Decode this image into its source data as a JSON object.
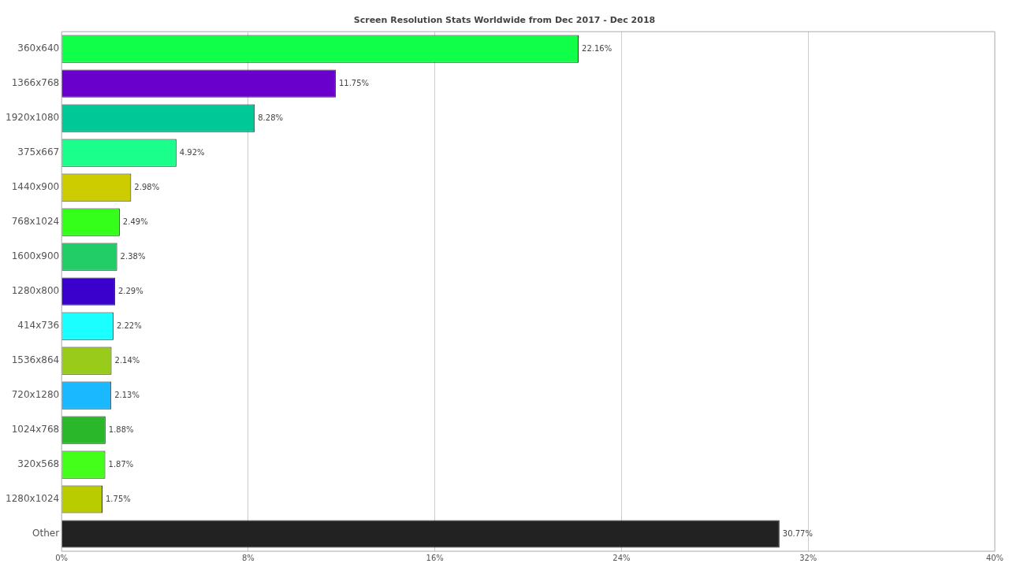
{
  "chart_data": {
    "type": "bar",
    "orientation": "horizontal",
    "subtitle": "Screen Resolution Stats Worldwide from Dec 2017 - Dec 2018",
    "categories": [
      "360x640",
      "1366x768",
      "1920x1080",
      "375x667",
      "1440x900",
      "768x1024",
      "1600x900",
      "1280x800",
      "414x736",
      "1536x864",
      "720x1280",
      "1024x768",
      "320x568",
      "1280x1024",
      "Other"
    ],
    "values": [
      22.16,
      11.75,
      8.28,
      4.92,
      2.98,
      2.49,
      2.38,
      2.29,
      2.22,
      2.14,
      2.13,
      1.88,
      1.87,
      1.75,
      30.77
    ],
    "value_labels": [
      "22.16%",
      "11.75%",
      "8.28%",
      "4.92%",
      "2.98%",
      "2.49%",
      "2.38%",
      "2.29%",
      "2.22%",
      "2.14%",
      "2.13%",
      "1.88%",
      "1.87%",
      "1.75%",
      "30.77%"
    ],
    "colors": [
      "#10ff48",
      "#6a00cc",
      "#00c896",
      "#1aff8c",
      "#cccc00",
      "#33ff1a",
      "#22cc66",
      "#3a00cc",
      "#1affff",
      "#99cc1a",
      "#1ab8ff",
      "#2ab82a",
      "#44ff1a",
      "#b8cc00",
      "#222222"
    ],
    "xlim": [
      0,
      40
    ],
    "xticks": [
      {
        "value": 0,
        "label": "0%"
      },
      {
        "value": 8,
        "label": "8%"
      },
      {
        "value": 16,
        "label": "16%"
      },
      {
        "value": 24,
        "label": "24%"
      },
      {
        "value": 32,
        "label": "32%"
      },
      {
        "value": 40,
        "label": "40%"
      }
    ],
    "grid": "x",
    "legend": false
  }
}
